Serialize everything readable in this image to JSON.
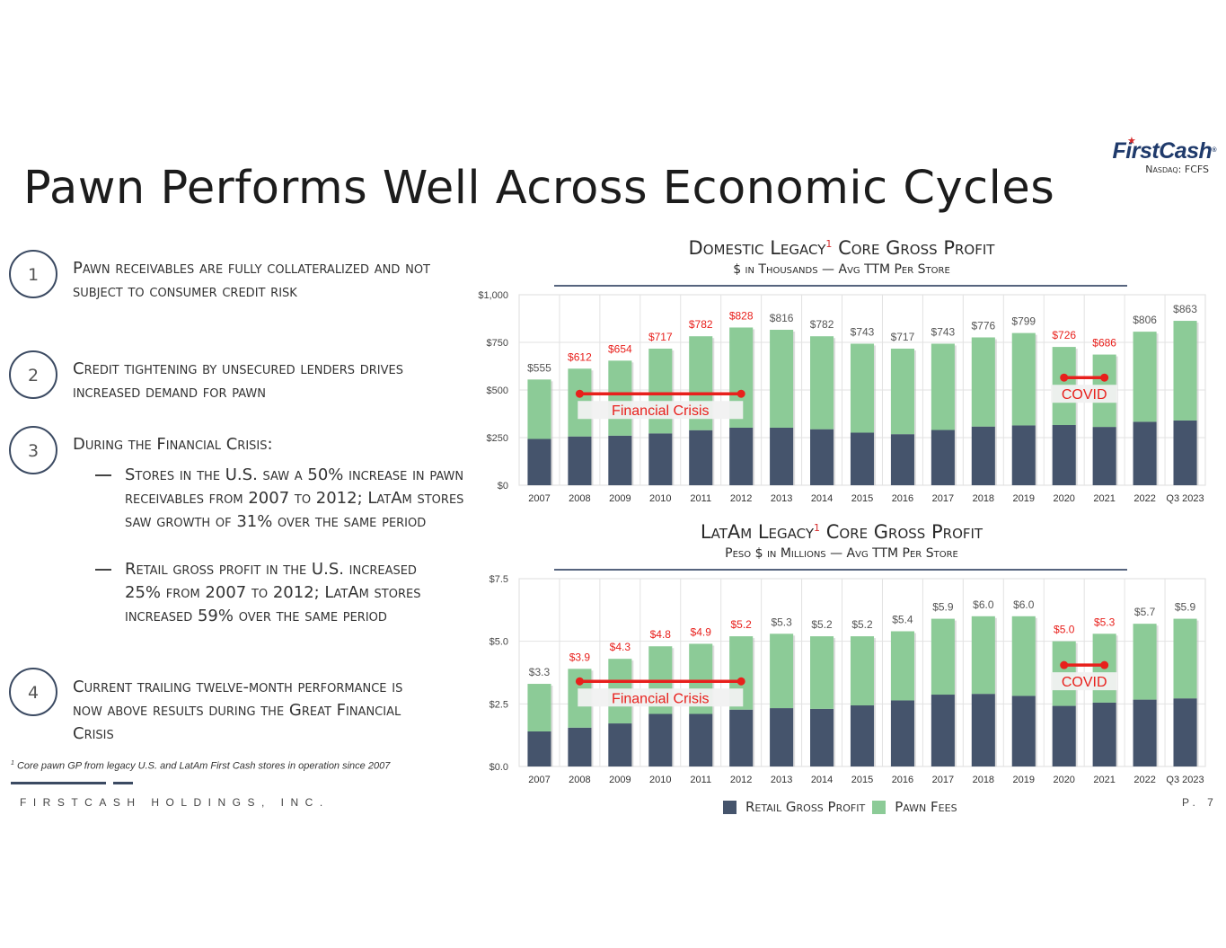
{
  "title": "Pawn Performs Well Across Economic Cycles",
  "logo": {
    "name": "FirstCash",
    "ticker": "Nasdaq: FCFS"
  },
  "colors": {
    "retail": "#45546c",
    "pawn": "#8ccb97",
    "accent": "#e8201c",
    "rule": "#56647e"
  },
  "points": [
    {
      "num": "1",
      "text": "Pawn receivables are fully collateralized and not subject to consumer credit risk"
    },
    {
      "num": "2",
      "text": "Credit tightening by unsecured lenders drives increased demand for pawn"
    },
    {
      "num": "3",
      "text": "During the Financial Crisis:",
      "subs": [
        "Stores in the U.S. saw a 50% increase in pawn receivables from 2007 to 2012; LatAm stores saw growth of 31% over the same period",
        "Retail gross profit in the U.S. increased 25% from 2007 to 2012; LatAm stores increased 59% over the same period"
      ]
    },
    {
      "num": "4",
      "text": "Current trailing twelve-month performance is now above results during the Great Financial Crisis"
    }
  ],
  "footnote": {
    "mark": "1",
    "text": "Core pawn GP from legacy U.S. and LatAm First Cash stores in operation since 2007"
  },
  "footer": {
    "company": "FIRSTCASH HOLDINGS, INC.",
    "page": "P. 7"
  },
  "legend": {
    "retail": "Retail Gross Profit",
    "pawn": "Pawn Fees"
  },
  "chart_data": [
    {
      "type": "bar",
      "stacked": true,
      "title": "Domestic Legacy",
      "title_suffix": "Core Gross Profit",
      "title_mark": "1",
      "subtitle": "$ in Thousands — Avg TTM Per Store",
      "categories": [
        "2007",
        "2008",
        "2009",
        "2010",
        "2011",
        "2012",
        "2013",
        "2014",
        "2015",
        "2016",
        "2017",
        "2018",
        "2019",
        "2020",
        "2021",
        "2022",
        "Q3 2023"
      ],
      "series": [
        {
          "name": "Retail Gross Profit",
          "values": [
            243,
            256,
            260,
            272,
            289,
            302,
            302,
            294,
            276,
            268,
            290,
            308,
            314,
            316,
            306,
            333,
            340
          ]
        },
        {
          "name": "Pawn Fees",
          "values": [
            312,
            356,
            394,
            445,
            493,
            526,
            514,
            488,
            467,
            449,
            453,
            468,
            485,
            410,
            380,
            473,
            523
          ]
        }
      ],
      "totals": [
        "$555",
        "$612",
        "$654",
        "$717",
        "$782",
        "$828",
        "$816",
        "$782",
        "$743",
        "$717",
        "$743",
        "$776",
        "$799",
        "$726",
        "$686",
        "$806",
        "$863"
      ],
      "highlighted": [
        false,
        true,
        true,
        true,
        true,
        true,
        false,
        false,
        false,
        false,
        false,
        false,
        false,
        true,
        true,
        false,
        false
      ],
      "yticks": [
        "$0",
        "$250",
        "$500",
        "$750",
        "$1,000"
      ],
      "ylim": [
        0,
        1000
      ],
      "annotations": [
        {
          "label": "Financial Crisis",
          "from": "2008",
          "to": "2012",
          "y": 480
        },
        {
          "label": "COVID",
          "from": "2020",
          "to": "2021",
          "y": 565
        }
      ]
    },
    {
      "type": "bar",
      "stacked": true,
      "title": "LatAm Legacy",
      "title_suffix": "Core Gross Profit",
      "title_mark": "1",
      "subtitle": "Peso $ in Millions — Avg TTM Per Store",
      "categories": [
        "2007",
        "2008",
        "2009",
        "2010",
        "2011",
        "2012",
        "2013",
        "2014",
        "2015",
        "2016",
        "2017",
        "2018",
        "2019",
        "2020",
        "2021",
        "2022",
        "Q3 2023"
      ],
      "series": [
        {
          "name": "Retail Gross Profit",
          "values": [
            1.4,
            1.55,
            1.72,
            2.1,
            2.1,
            2.27,
            2.33,
            2.3,
            2.44,
            2.64,
            2.87,
            2.9,
            2.82,
            2.42,
            2.55,
            2.67,
            2.72
          ]
        },
        {
          "name": "Pawn Fees",
          "values": [
            1.9,
            2.35,
            2.58,
            2.7,
            2.8,
            2.93,
            2.97,
            2.9,
            2.76,
            2.76,
            3.03,
            3.1,
            3.18,
            2.58,
            2.75,
            3.03,
            3.18
          ]
        }
      ],
      "totals": [
        "$3.3",
        "$3.9",
        "$4.3",
        "$4.8",
        "$4.9",
        "$5.2",
        "$5.3",
        "$5.2",
        "$5.2",
        "$5.4",
        "$5.9",
        "$6.0",
        "$6.0",
        "$5.0",
        "$5.3",
        "$5.7",
        "$5.9"
      ],
      "highlighted": [
        false,
        true,
        true,
        true,
        true,
        true,
        false,
        false,
        false,
        false,
        false,
        false,
        false,
        true,
        true,
        false,
        false
      ],
      "yticks": [
        "$0.0",
        "$2.5",
        "$5.0",
        "$7.5"
      ],
      "ylim": [
        0,
        7.5
      ],
      "annotations": [
        {
          "label": "Financial Crisis",
          "from": "2008",
          "to": "2012",
          "y": 3.4
        },
        {
          "label": "COVID",
          "from": "2020",
          "to": "2021",
          "y": 4.05
        }
      ]
    }
  ]
}
